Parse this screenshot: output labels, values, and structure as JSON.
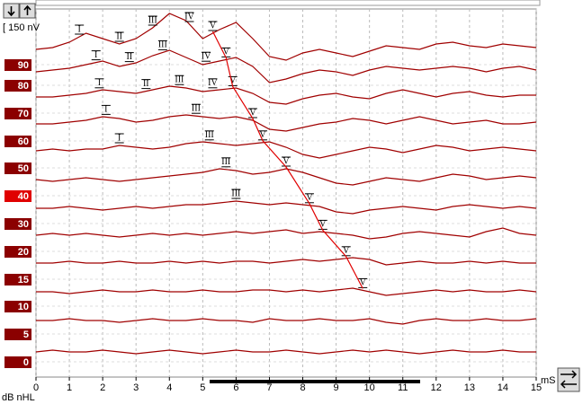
{
  "chart_data": {
    "type": "line",
    "x_label": "mS",
    "y_label": "dB nHL",
    "scale_label": "[ 150 nV",
    "xlim": [
      0,
      15
    ],
    "xticks": [
      0,
      1,
      2,
      3,
      4,
      5,
      6,
      7,
      8,
      9,
      10,
      11,
      12,
      13,
      14,
      15
    ],
    "grid": true,
    "x": [
      0,
      0.5,
      1,
      1.5,
      2,
      2.5,
      3,
      3.5,
      4,
      4.5,
      5,
      5.5,
      6,
      6.5,
      7,
      7.5,
      8,
      8.5,
      9,
      9.5,
      10,
      10.5,
      11,
      11.5,
      12,
      12.5,
      13,
      13.5,
      14,
      14.5,
      15
    ],
    "series": [
      {
        "name": "90",
        "color": "#a00000",
        "values": [
          0,
          10,
          40,
          90,
          60,
          30,
          60,
          120,
          200,
          160,
          60,
          110,
          150,
          60,
          -40,
          -60,
          -20,
          0,
          -20,
          -40,
          -10,
          20,
          10,
          0,
          30,
          40,
          20,
          10,
          30,
          20,
          10
        ],
        "peaks": [
          {
            "label": "I",
            "x": 1.3
          },
          {
            "label": "II",
            "x": 2.5
          },
          {
            "label": "III",
            "x": 3.5
          },
          {
            "label": "IV",
            "x": 4.6
          },
          {
            "label": "V",
            "x": 5.3
          }
        ]
      },
      {
        "name": "80",
        "color": "#a00000",
        "values": [
          0,
          10,
          20,
          40,
          60,
          30,
          50,
          90,
          120,
          80,
          40,
          60,
          80,
          30,
          -60,
          -40,
          -10,
          10,
          0,
          -20,
          10,
          30,
          20,
          10,
          20,
          30,
          20,
          0,
          20,
          30,
          10
        ],
        "peaks": [
          {
            "label": "I",
            "x": 1.8
          },
          {
            "label": "II",
            "x": 2.8
          },
          {
            "label": "III",
            "x": 3.8
          },
          {
            "label": "IV",
            "x": 5.1
          },
          {
            "label": "V",
            "x": 5.7
          }
        ]
      },
      {
        "name": "70",
        "color": "#a00000",
        "values": [
          0,
          0,
          10,
          20,
          40,
          30,
          20,
          40,
          60,
          50,
          30,
          40,
          50,
          20,
          -30,
          -40,
          -10,
          10,
          20,
          0,
          -10,
          20,
          40,
          20,
          0,
          20,
          30,
          10,
          0,
          10,
          10
        ],
        "peaks": [
          {
            "label": "I",
            "x": 1.9
          },
          {
            "label": "II",
            "x": 3.3
          },
          {
            "label": "III",
            "x": 4.3
          },
          {
            "label": "IV",
            "x": 5.3
          },
          {
            "label": "V",
            "x": 5.9
          }
        ]
      },
      {
        "name": "60",
        "color": "#a00000",
        "values": [
          0,
          0,
          10,
          20,
          40,
          30,
          10,
          20,
          40,
          50,
          40,
          30,
          40,
          20,
          -30,
          -40,
          -20,
          0,
          10,
          30,
          20,
          0,
          20,
          40,
          20,
          0,
          10,
          20,
          0,
          0,
          10
        ],
        "peaks": [
          {
            "label": "I",
            "x": 2.1
          },
          {
            "label": "III",
            "x": 4.8
          },
          {
            "label": "V",
            "x": 6.5
          }
        ]
      },
      {
        "name": "50",
        "color": "#a00000",
        "values": [
          0,
          10,
          0,
          10,
          10,
          30,
          20,
          10,
          20,
          40,
          50,
          40,
          30,
          40,
          50,
          20,
          -20,
          -40,
          -20,
          0,
          20,
          10,
          -10,
          10,
          30,
          20,
          0,
          10,
          20,
          10,
          0
        ],
        "peaks": [
          {
            "label": "I",
            "x": 2.5
          },
          {
            "label": "III",
            "x": 5.2
          },
          {
            "label": "V",
            "x": 6.8
          }
        ]
      },
      {
        "name": "40",
        "color": "#a00000",
        "highlight": true,
        "values": [
          0,
          -10,
          0,
          10,
          0,
          -10,
          0,
          10,
          20,
          30,
          40,
          60,
          50,
          30,
          40,
          60,
          40,
          10,
          -20,
          -30,
          -10,
          10,
          0,
          -10,
          10,
          30,
          20,
          0,
          10,
          20,
          10
        ],
        "peaks": [
          {
            "label": "III",
            "x": 5.7
          },
          {
            "label": "V",
            "x": 7.5
          }
        ]
      },
      {
        "name": "30",
        "color": "#a00000",
        "values": [
          0,
          0,
          10,
          0,
          -10,
          0,
          10,
          0,
          10,
          20,
          20,
          30,
          40,
          30,
          20,
          30,
          20,
          10,
          -20,
          -30,
          -10,
          0,
          10,
          0,
          -10,
          10,
          20,
          10,
          0,
          10,
          0
        ],
        "peaks": [
          {
            "label": "III",
            "x": 6.0
          },
          {
            "label": "V",
            "x": 8.2
          }
        ]
      },
      {
        "name": "20",
        "color": "#a00000",
        "values": [
          0,
          10,
          0,
          10,
          0,
          -10,
          0,
          10,
          0,
          10,
          0,
          10,
          20,
          10,
          20,
          30,
          10,
          20,
          10,
          0,
          -20,
          -10,
          10,
          20,
          10,
          0,
          -10,
          20,
          40,
          10,
          0
        ],
        "peaks": [
          {
            "label": "V",
            "x": 8.6
          }
        ]
      },
      {
        "name": "15",
        "color": "#a00000",
        "values": [
          0,
          0,
          10,
          0,
          0,
          10,
          0,
          0,
          10,
          0,
          10,
          0,
          10,
          10,
          0,
          10,
          20,
          10,
          20,
          30,
          20,
          -10,
          0,
          10,
          0,
          0,
          10,
          0,
          10,
          0,
          0
        ],
        "peaks": [
          {
            "label": "V",
            "x": 9.3
          }
        ]
      },
      {
        "name": "10",
        "color": "#a00000",
        "values": [
          0,
          0,
          -10,
          0,
          10,
          0,
          0,
          10,
          0,
          0,
          10,
          0,
          0,
          10,
          10,
          0,
          10,
          0,
          10,
          20,
          0,
          -20,
          -10,
          0,
          10,
          0,
          10,
          0,
          0,
          10,
          0
        ],
        "peaks": [
          {
            "label": "V",
            "x": 9.8
          }
        ]
      },
      {
        "name": "5",
        "color": "#a00000",
        "values": [
          0,
          0,
          10,
          0,
          0,
          -10,
          0,
          10,
          0,
          0,
          10,
          0,
          0,
          -10,
          10,
          0,
          0,
          10,
          0,
          0,
          10,
          -10,
          -20,
          0,
          10,
          0,
          0,
          10,
          0,
          0,
          10
        ],
        "peaks": []
      },
      {
        "name": "0",
        "color": "#a00000",
        "values": [
          0,
          10,
          0,
          0,
          10,
          0,
          -10,
          0,
          10,
          0,
          -10,
          0,
          10,
          0,
          0,
          10,
          0,
          -10,
          0,
          10,
          0,
          10,
          0,
          -10,
          0,
          10,
          0,
          0,
          10,
          0,
          0
        ],
        "peaks": []
      }
    ]
  }
}
